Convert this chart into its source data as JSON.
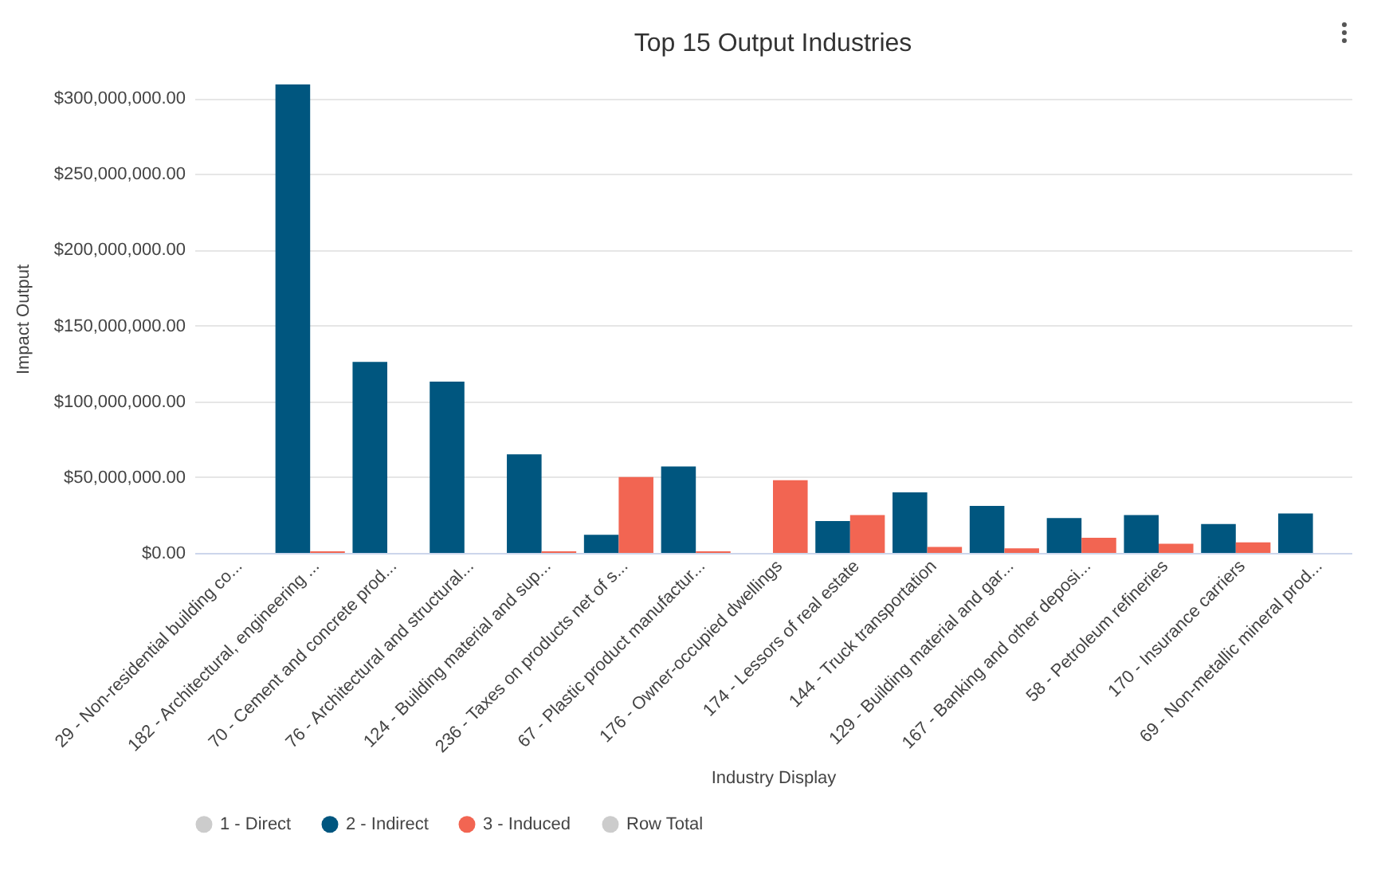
{
  "chart_data": {
    "type": "bar",
    "title": "Top 15 Output Industries",
    "xlabel": "Industry Display",
    "ylabel": "Impact Output",
    "categories": [
      "29 - Non-residential building co...",
      "182 - Architectural, engineering ...",
      "70 - Cement and concrete prod...",
      "76 - Architectural and structural...",
      "124 - Building material and sup...",
      "236 - Taxes on products net of s...",
      "67 - Plastic product manufactur...",
      "176 - Owner-occupied dwellings",
      "174 - Lessors of real estate",
      "144 - Truck transportation",
      "129 - Building material and gar...",
      "167 - Banking and other deposi...",
      "58 - Petroleum refineries",
      "170 - Insurance carriers",
      "69 - Non-metallic mineral prod..."
    ],
    "series": [
      {
        "name": "1 - Direct",
        "color": "#cccccc",
        "values": [
          null,
          null,
          null,
          null,
          null,
          null,
          null,
          null,
          null,
          null,
          null,
          null,
          null,
          null,
          null
        ]
      },
      {
        "name": "2 - Indirect",
        "color": "#00567f",
        "values": [
          0,
          309000000,
          126000000,
          113000000,
          65000000,
          12000000,
          57000000,
          0,
          21000000,
          40000000,
          31000000,
          23000000,
          25000000,
          19000000,
          26000000
        ]
      },
      {
        "name": "3 - Induced",
        "color": "#f26552",
        "values": [
          0,
          1000000,
          0,
          0,
          1000000,
          50000000,
          1000000,
          48000000,
          25000000,
          4000000,
          3000000,
          10000000,
          6000000,
          7000000,
          0
        ]
      },
      {
        "name": "Row Total",
        "color": "#cccccc",
        "values": [
          null,
          null,
          null,
          null,
          null,
          null,
          null,
          null,
          null,
          null,
          null,
          null,
          null,
          null,
          null
        ]
      }
    ],
    "ylim": [
      0,
      309000000
    ],
    "yticks": [
      {
        "value": 0,
        "label": "$0.00"
      },
      {
        "value": 50000000,
        "label": "$50,000,000.00"
      },
      {
        "value": 100000000,
        "label": "$100,000,000.00"
      },
      {
        "value": 150000000,
        "label": "$150,000,000.00"
      },
      {
        "value": 200000000,
        "label": "$200,000,000.00"
      },
      {
        "value": 250000000,
        "label": "$250,000,000.00"
      },
      {
        "value": 300000000,
        "label": "$300,000,000.00"
      }
    ],
    "grid": "y",
    "legend": "bottom"
  }
}
